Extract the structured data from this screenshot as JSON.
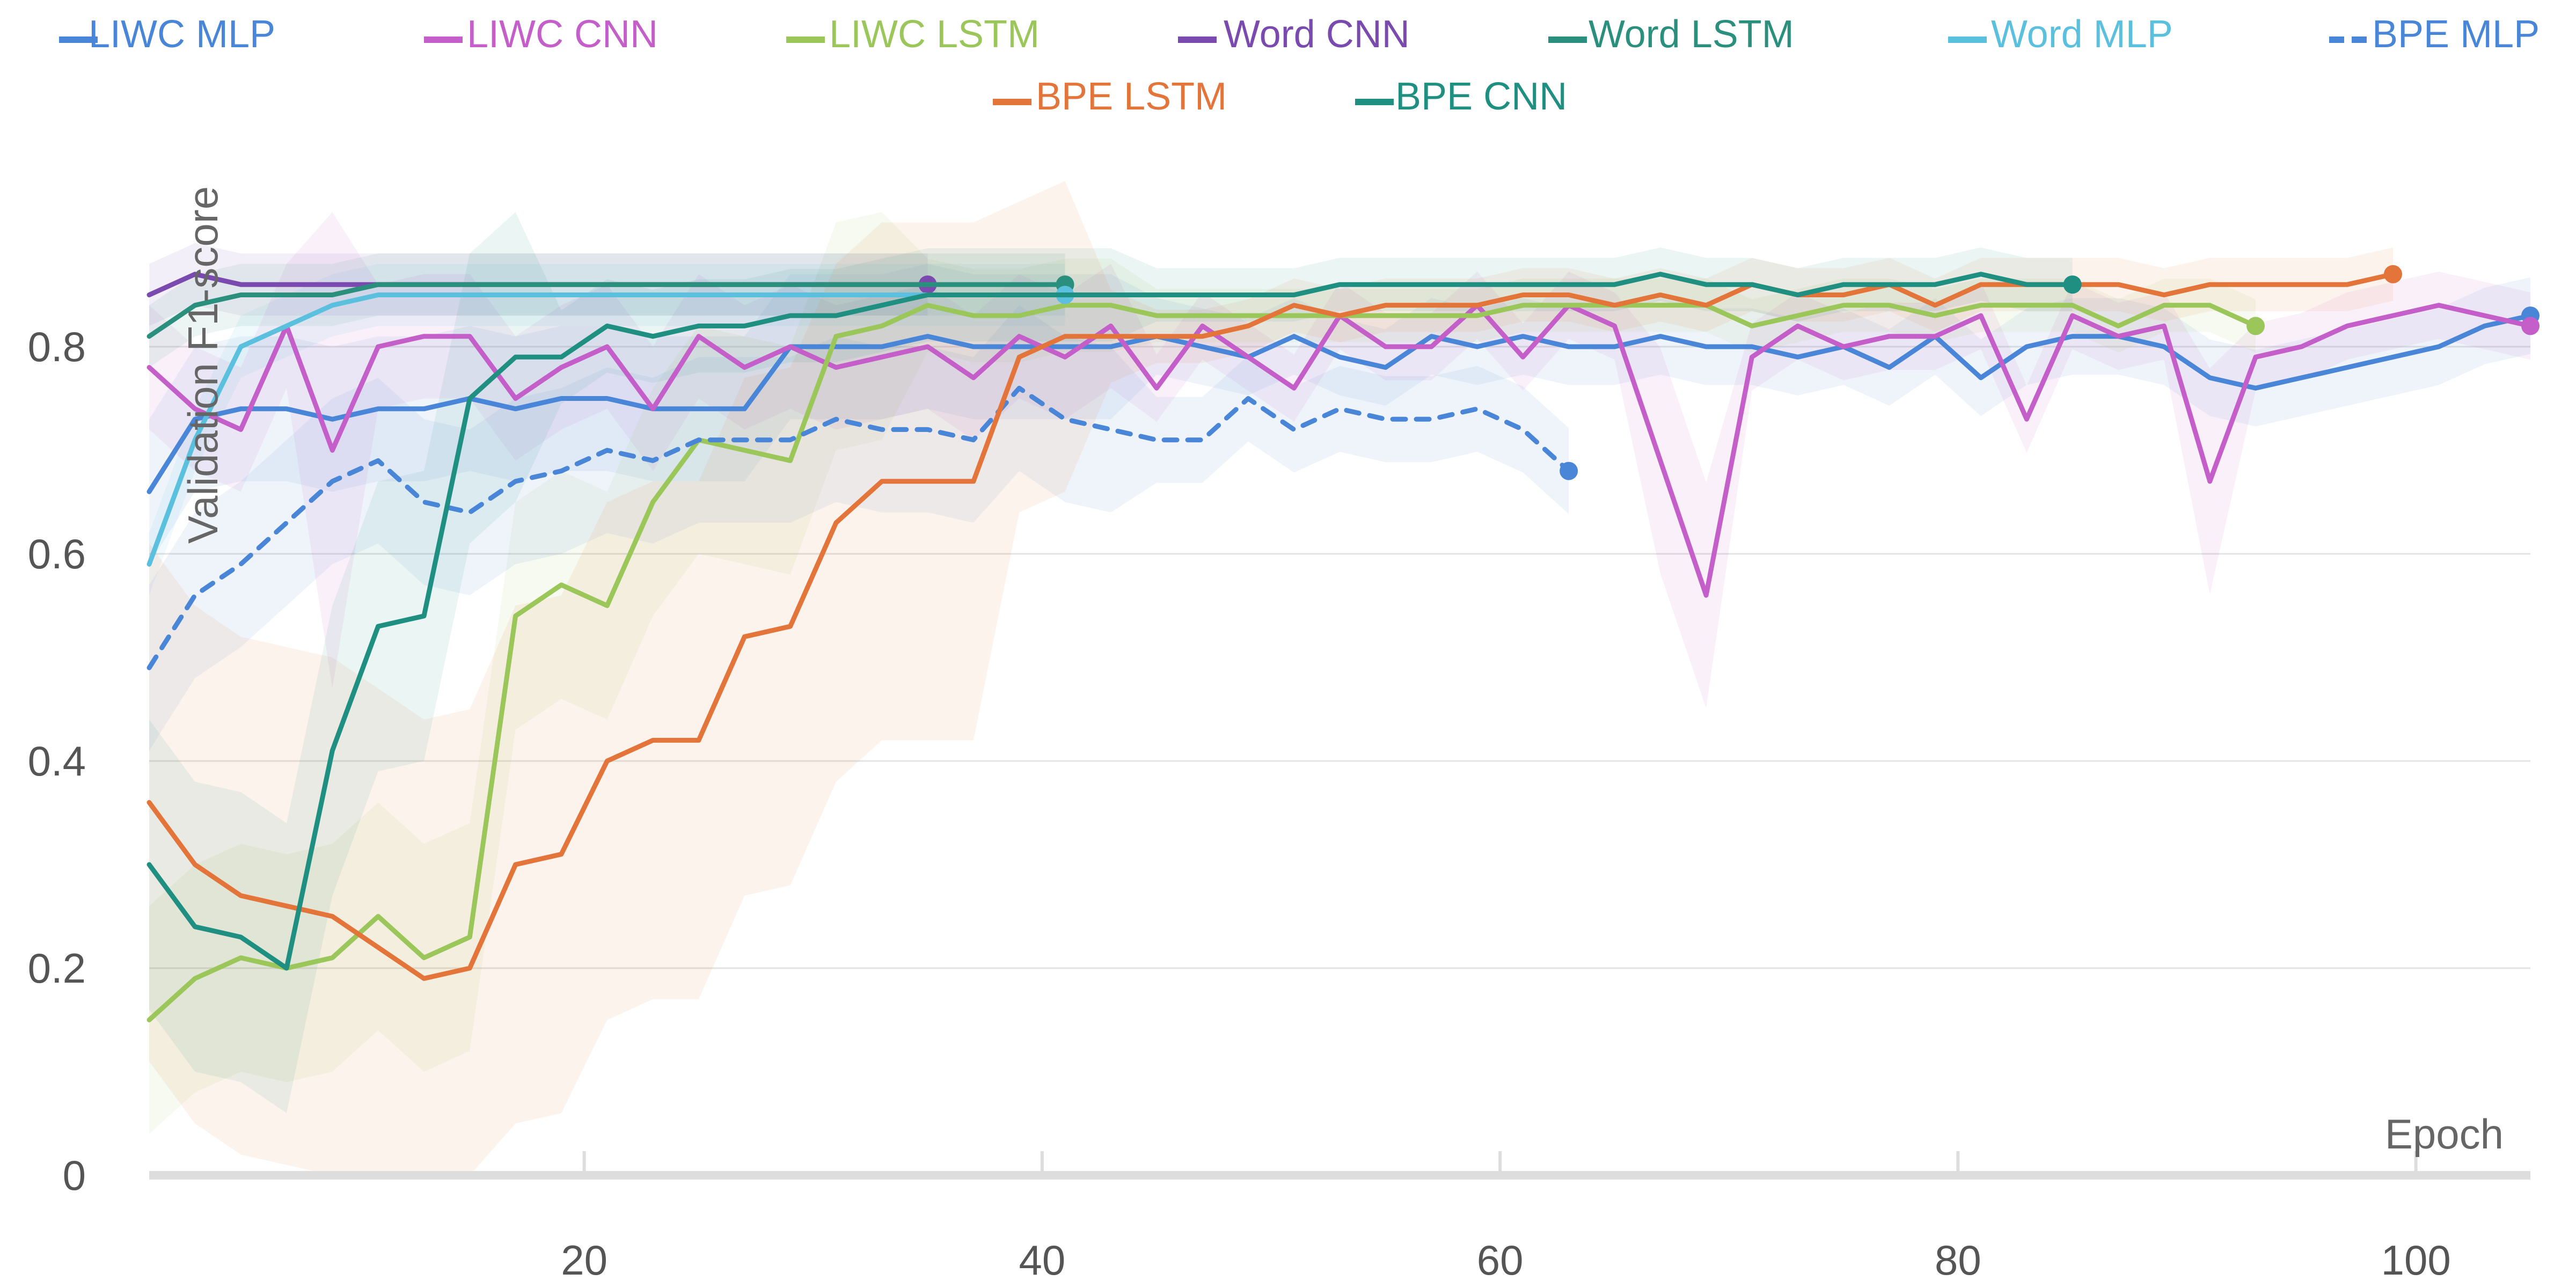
{
  "chart_data": {
    "type": "line",
    "ylabel": "Validation F1-score",
    "xlabel": "Epoch",
    "xlim": [
      1,
      105
    ],
    "ylim": [
      0,
      1.0
    ],
    "x_ticks": [
      "20",
      "40",
      "60",
      "80",
      "100"
    ],
    "y_ticks": [
      "0",
      "0.2",
      "0.4",
      "0.6",
      "0.8"
    ],
    "grid": true,
    "legend_position": "top",
    "series": [
      {
        "name": "LIWC MLP",
        "color": "#4a86d8",
        "dash": false,
        "x": [
          1,
          3,
          5,
          7,
          9,
          11,
          13,
          15,
          17,
          19,
          21,
          23,
          25,
          27,
          29,
          31,
          33,
          35,
          37,
          39,
          41,
          43,
          45,
          47,
          49,
          51,
          53,
          55,
          57,
          59,
          61,
          63,
          65,
          67,
          69,
          71,
          73,
          75,
          77,
          79,
          81,
          83,
          85,
          87,
          89,
          91,
          93,
          95,
          97,
          99,
          101,
          103,
          105
        ],
        "y": [
          0.66,
          0.73,
          0.74,
          0.74,
          0.73,
          0.74,
          0.74,
          0.75,
          0.74,
          0.75,
          0.75,
          0.74,
          0.74,
          0.74,
          0.8,
          0.8,
          0.8,
          0.81,
          0.8,
          0.8,
          0.8,
          0.8,
          0.81,
          0.8,
          0.79,
          0.81,
          0.79,
          0.78,
          0.81,
          0.8,
          0.81,
          0.8,
          0.8,
          0.81,
          0.8,
          0.8,
          0.79,
          0.8,
          0.78,
          0.81,
          0.77,
          0.8,
          0.81,
          0.81,
          0.8,
          0.77,
          0.76,
          0.77,
          0.78,
          0.79,
          0.8,
          0.82,
          0.83
        ]
      },
      {
        "name": "LIWC CNN",
        "color": "#c45ec9",
        "dash": false,
        "x": [
          1,
          3,
          5,
          7,
          9,
          11,
          13,
          15,
          17,
          19,
          21,
          23,
          25,
          27,
          29,
          31,
          33,
          35,
          37,
          39,
          41,
          43,
          45,
          47,
          49,
          51,
          53,
          55,
          57,
          59,
          61,
          63,
          65,
          67,
          69,
          71,
          73,
          75,
          77,
          79,
          81,
          83,
          85,
          87,
          89,
          91,
          93,
          95,
          97,
          99,
          101,
          103,
          105
        ],
        "y": [
          0.78,
          0.74,
          0.72,
          0.82,
          0.7,
          0.8,
          0.81,
          0.81,
          0.75,
          0.78,
          0.8,
          0.74,
          0.81,
          0.78,
          0.8,
          0.78,
          0.79,
          0.8,
          0.77,
          0.81,
          0.79,
          0.82,
          0.76,
          0.82,
          0.79,
          0.76,
          0.83,
          0.8,
          0.8,
          0.84,
          0.79,
          0.84,
          0.82,
          0.69,
          0.56,
          0.79,
          0.82,
          0.8,
          0.81,
          0.81,
          0.83,
          0.73,
          0.83,
          0.81,
          0.82,
          0.67,
          0.79,
          0.8,
          0.82,
          0.83,
          0.84,
          0.83,
          0.82
        ]
      },
      {
        "name": "LIWC LSTM",
        "color": "#9ac65a",
        "dash": false,
        "x": [
          1,
          3,
          5,
          7,
          9,
          11,
          13,
          15,
          17,
          19,
          21,
          23,
          25,
          27,
          29,
          31,
          33,
          35,
          37,
          39,
          41,
          43,
          45,
          47,
          49,
          51,
          53,
          55,
          57,
          59,
          61,
          63,
          65,
          67,
          69,
          71,
          73,
          75,
          77,
          79,
          81,
          83,
          85,
          87,
          89,
          91,
          93
        ],
        "y": [
          0.15,
          0.19,
          0.21,
          0.2,
          0.21,
          0.25,
          0.21,
          0.23,
          0.54,
          0.57,
          0.55,
          0.65,
          0.71,
          0.7,
          0.69,
          0.81,
          0.82,
          0.84,
          0.83,
          0.83,
          0.84,
          0.84,
          0.83,
          0.83,
          0.83,
          0.83,
          0.83,
          0.83,
          0.83,
          0.83,
          0.84,
          0.84,
          0.84,
          0.84,
          0.84,
          0.82,
          0.83,
          0.84,
          0.84,
          0.83,
          0.84,
          0.84,
          0.84,
          0.82,
          0.84,
          0.84,
          0.82
        ]
      },
      {
        "name": "Word CNN",
        "color": "#7a4aae",
        "dash": false,
        "x": [
          1,
          3,
          5,
          7,
          9,
          11,
          13,
          15,
          17,
          19,
          21,
          23,
          25,
          27,
          29,
          31,
          33,
          35
        ],
        "y": [
          0.85,
          0.87,
          0.86,
          0.86,
          0.86,
          0.86,
          0.86,
          0.86,
          0.86,
          0.86,
          0.86,
          0.86,
          0.86,
          0.86,
          0.86,
          0.86,
          0.86,
          0.86
        ]
      },
      {
        "name": "Word LSTM",
        "color": "#2a8f7c",
        "dash": false,
        "x": [
          1,
          3,
          5,
          7,
          9,
          11,
          13,
          15,
          17,
          19,
          21,
          23,
          25,
          27,
          29,
          31,
          33,
          35,
          37,
          39,
          41
        ],
        "y": [
          0.81,
          0.84,
          0.85,
          0.85,
          0.85,
          0.86,
          0.86,
          0.86,
          0.86,
          0.86,
          0.86,
          0.86,
          0.86,
          0.86,
          0.86,
          0.86,
          0.86,
          0.86,
          0.86,
          0.86,
          0.86
        ]
      },
      {
        "name": "Word MLP",
        "color": "#5bc0dd",
        "dash": false,
        "x": [
          1,
          3,
          5,
          7,
          9,
          11,
          13,
          15,
          17,
          19,
          21,
          23,
          25,
          27,
          29,
          31,
          33,
          35,
          37,
          39,
          41
        ],
        "y": [
          0.59,
          0.71,
          0.8,
          0.82,
          0.84,
          0.85,
          0.85,
          0.85,
          0.85,
          0.85,
          0.85,
          0.85,
          0.85,
          0.85,
          0.85,
          0.85,
          0.85,
          0.85,
          0.85,
          0.85,
          0.85
        ]
      },
      {
        "name": "BPE MLP",
        "color": "#4a86d8",
        "dash": true,
        "x": [
          1,
          3,
          5,
          7,
          9,
          11,
          13,
          15,
          17,
          19,
          21,
          23,
          25,
          27,
          29,
          31,
          33,
          35,
          37,
          39,
          41,
          43,
          45,
          47,
          49,
          51,
          53,
          55,
          57,
          59,
          61,
          63
        ],
        "y": [
          0.49,
          0.56,
          0.59,
          0.63,
          0.67,
          0.69,
          0.65,
          0.64,
          0.67,
          0.68,
          0.7,
          0.69,
          0.71,
          0.71,
          0.71,
          0.73,
          0.72,
          0.72,
          0.71,
          0.76,
          0.73,
          0.72,
          0.71,
          0.71,
          0.75,
          0.72,
          0.74,
          0.73,
          0.73,
          0.74,
          0.72,
          0.68
        ]
      },
      {
        "name": "BPE LSTM",
        "color": "#e4753a",
        "dash": false,
        "x": [
          1,
          3,
          5,
          7,
          9,
          11,
          13,
          15,
          17,
          19,
          21,
          23,
          25,
          27,
          29,
          31,
          33,
          35,
          37,
          39,
          41,
          43,
          45,
          47,
          49,
          51,
          53,
          55,
          57,
          59,
          61,
          63,
          65,
          67,
          69,
          71,
          73,
          75,
          77,
          79,
          81,
          83,
          85,
          87,
          89,
          91,
          93,
          95,
          97,
          99
        ],
        "y": [
          0.36,
          0.3,
          0.27,
          0.26,
          0.25,
          0.22,
          0.19,
          0.2,
          0.3,
          0.31,
          0.4,
          0.42,
          0.42,
          0.52,
          0.53,
          0.63,
          0.67,
          0.67,
          0.67,
          0.79,
          0.81,
          0.81,
          0.81,
          0.81,
          0.82,
          0.84,
          0.83,
          0.84,
          0.84,
          0.84,
          0.85,
          0.85,
          0.84,
          0.85,
          0.84,
          0.86,
          0.85,
          0.85,
          0.86,
          0.84,
          0.86,
          0.86,
          0.86,
          0.86,
          0.85,
          0.86,
          0.86,
          0.86,
          0.86,
          0.87
        ]
      },
      {
        "name": "BPE CNN",
        "color": "#1e8f80",
        "dash": false,
        "x": [
          1,
          3,
          5,
          7,
          9,
          11,
          13,
          15,
          17,
          19,
          21,
          23,
          25,
          27,
          29,
          31,
          33,
          35,
          37,
          39,
          41,
          43,
          45,
          47,
          49,
          51,
          53,
          55,
          57,
          59,
          61,
          63,
          65,
          67,
          69,
          71,
          73,
          75,
          77,
          79,
          81,
          83,
          85
        ],
        "y": [
          0.3,
          0.24,
          0.23,
          0.2,
          0.41,
          0.53,
          0.54,
          0.75,
          0.79,
          0.79,
          0.82,
          0.81,
          0.82,
          0.82,
          0.83,
          0.83,
          0.84,
          0.85,
          0.85,
          0.85,
          0.85,
          0.85,
          0.85,
          0.85,
          0.85,
          0.85,
          0.86,
          0.86,
          0.86,
          0.86,
          0.86,
          0.86,
          0.86,
          0.87,
          0.86,
          0.86,
          0.85,
          0.86,
          0.86,
          0.86,
          0.87,
          0.86,
          0.86
        ]
      }
    ]
  }
}
